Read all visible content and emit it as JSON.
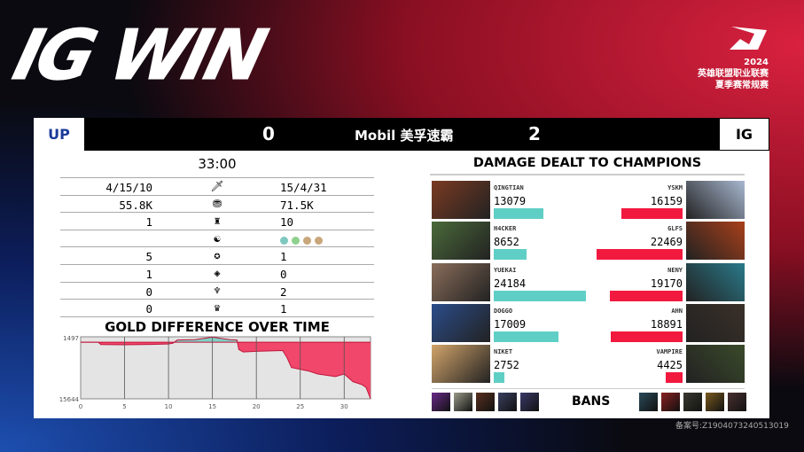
{
  "title": "IG WIN",
  "league": {
    "year": "2024",
    "line1": "英雄联盟职业联赛",
    "line2": "夏季赛常规赛"
  },
  "scorebar": {
    "left_team": "UP",
    "right_team": "IG",
    "left_score": "0",
    "right_score": "2",
    "sponsor": "Mobil 美孚速霸"
  },
  "game_time": "33:00",
  "stats": [
    {
      "icon": "sword-icon",
      "glyph": "🗡",
      "left": "4/15/10",
      "right": "15/4/31"
    },
    {
      "icon": "gold-icon",
      "glyph": "⛃",
      "left": "55.8K",
      "right": "71.5K"
    },
    {
      "icon": "turret-icon",
      "glyph": "♜",
      "left": "1",
      "right": "10"
    },
    {
      "icon": "dragon-icon",
      "glyph": "☯",
      "left": "",
      "right_dragons": [
        "#7fc8c0",
        "#8fd18f",
        "#c8a77a",
        "#c8a77a"
      ]
    },
    {
      "icon": "grub-icon",
      "glyph": "✪",
      "left": "5",
      "right": "1"
    },
    {
      "icon": "herald-icon",
      "glyph": "◈",
      "left": "1",
      "right": "0"
    },
    {
      "icon": "baron-icon",
      "glyph": "♆",
      "left": "0",
      "right": "2"
    },
    {
      "icon": "elder-icon",
      "glyph": "♛",
      "left": "0",
      "right": "1"
    }
  ],
  "gold_chart": {
    "title": "GOLD DIFFERENCE OVER TIME",
    "y_top_label": "1497",
    "y_bottom_label": "15644",
    "ylim": [
      -15644,
      1497
    ],
    "xlim": [
      0,
      33
    ],
    "xticks": [
      "0",
      "5",
      "10",
      "15",
      "20",
      "25",
      "30"
    ],
    "chart_data": {
      "type": "area",
      "x": [
        0,
        2,
        2.3,
        5,
        8,
        10,
        10.5,
        11,
        13,
        15,
        17,
        17.8,
        18,
        18.5,
        20,
        23,
        23.5,
        24,
        26,
        27,
        29,
        30,
        31,
        32,
        32.5,
        33
      ],
      "y": [
        0,
        0,
        -650,
        -700,
        -600,
        -500,
        -300,
        600,
        700,
        1390,
        700,
        600,
        -2000,
        -2700,
        -2500,
        -2300,
        -4300,
        -7000,
        -8000,
        -8800,
        -9500,
        -8800,
        -10900,
        -11700,
        -12500,
        -15644
      ],
      "positive_color": "#7fd0c4",
      "negative_color": "#f0476a"
    }
  },
  "damage": {
    "title": "DAMAGE DEALT TO CHAMPIONS",
    "max": 24184,
    "left": [
      {
        "name": "QINGTIAN",
        "value": 13079,
        "c": "#7a3a22"
      },
      {
        "name": "H4CKER",
        "value": 8652,
        "c": "#4a6a3a"
      },
      {
        "name": "YUEKAI",
        "value": 24184,
        "c": "#8a6d5a"
      },
      {
        "name": "DOGGO",
        "value": 17009,
        "c": "#2b4c8a"
      },
      {
        "name": "NIKET",
        "value": 2752,
        "c": "#d2a46a"
      }
    ],
    "right": [
      {
        "name": "YSKM",
        "value": 16159,
        "c": "#a8b8d0"
      },
      {
        "name": "GLFS",
        "value": 22469,
        "c": "#a8401a"
      },
      {
        "name": "NENY",
        "value": 19170,
        "c": "#2a7a8a"
      },
      {
        "name": "AHN",
        "value": 18891,
        "c": "#3a3028"
      },
      {
        "name": "VAMPIRE",
        "value": 4425,
        "c": "#3a4a2a"
      }
    ],
    "left_color": "#5fcfc6",
    "right_color": "#f2193f"
  },
  "bans": {
    "label": "BANS",
    "left": [
      "#6a2a8a",
      "#9a9a8a",
      "#5a3020",
      "#3a4060",
      "#3a3a6a"
    ],
    "right": [
      "#2a4a5a",
      "#8a2020",
      "#3a3a30",
      "#7a5a20",
      "#4a3030"
    ]
  },
  "icp": "备案号:Z19040732405130​19"
}
